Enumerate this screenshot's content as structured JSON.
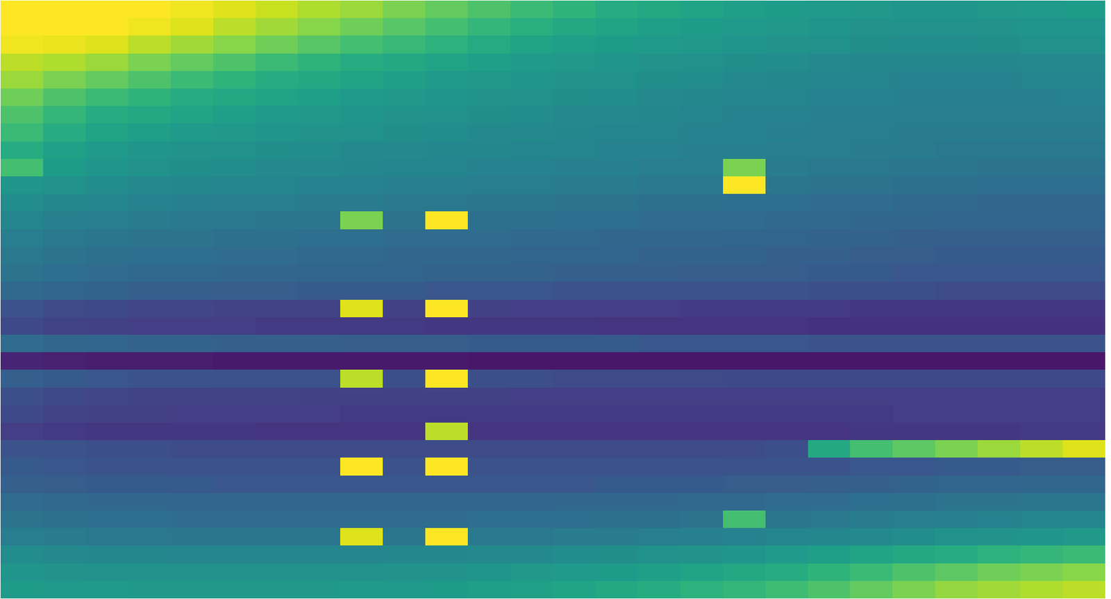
{
  "chart_data": {
    "type": "heatmap",
    "color": "Viridis",
    "tick_labels": false,
    "zlim": [
      0,
      1
    ],
    "cells": [
      [
        1.0,
        1.0,
        1.0,
        1.0,
        0.98,
        0.95,
        0.92,
        0.88,
        0.85,
        0.8,
        0.76,
        0.72,
        0.68,
        0.65,
        0.62,
        0.6,
        0.58,
        0.56,
        0.55,
        0.54,
        0.53,
        0.52,
        0.52,
        0.53,
        0.54,
        0.55
      ],
      [
        1.0,
        1.0,
        1.0,
        0.98,
        0.95,
        0.9,
        0.86,
        0.82,
        0.78,
        0.74,
        0.7,
        0.66,
        0.63,
        0.6,
        0.58,
        0.56,
        0.55,
        0.54,
        0.53,
        0.52,
        0.51,
        0.5,
        0.5,
        0.51,
        0.52,
        0.52
      ],
      [
        0.98,
        0.97,
        0.95,
        0.9,
        0.86,
        0.82,
        0.78,
        0.74,
        0.7,
        0.67,
        0.64,
        0.61,
        0.58,
        0.56,
        0.55,
        0.54,
        0.53,
        0.52,
        0.51,
        0.5,
        0.49,
        0.48,
        0.48,
        0.49,
        0.5,
        0.5
      ],
      [
        0.9,
        0.88,
        0.85,
        0.8,
        0.76,
        0.72,
        0.68,
        0.65,
        0.62,
        0.6,
        0.58,
        0.56,
        0.54,
        0.53,
        0.52,
        0.51,
        0.5,
        0.49,
        0.48,
        0.47,
        0.46,
        0.46,
        0.46,
        0.46,
        0.47,
        0.47
      ],
      [
        0.85,
        0.8,
        0.76,
        0.72,
        0.68,
        0.65,
        0.62,
        0.6,
        0.58,
        0.56,
        0.54,
        0.53,
        0.52,
        0.51,
        0.5,
        0.49,
        0.48,
        0.47,
        0.46,
        0.45,
        0.45,
        0.44,
        0.44,
        0.44,
        0.45,
        0.45
      ],
      [
        0.78,
        0.72,
        0.68,
        0.65,
        0.62,
        0.6,
        0.58,
        0.56,
        0.54,
        0.53,
        0.52,
        0.51,
        0.5,
        0.49,
        0.48,
        0.47,
        0.46,
        0.45,
        0.45,
        0.44,
        0.44,
        0.43,
        0.43,
        0.43,
        0.43,
        0.44
      ],
      [
        0.72,
        0.66,
        0.62,
        0.6,
        0.58,
        0.56,
        0.54,
        0.53,
        0.52,
        0.51,
        0.5,
        0.49,
        0.48,
        0.47,
        0.47,
        0.46,
        0.45,
        0.44,
        0.44,
        0.43,
        0.43,
        0.42,
        0.42,
        0.42,
        0.42,
        0.42
      ],
      [
        0.68,
        0.62,
        0.58,
        0.56,
        0.54,
        0.53,
        0.52,
        0.51,
        0.5,
        0.49,
        0.48,
        0.47,
        0.47,
        0.46,
        0.45,
        0.45,
        0.44,
        0.44,
        0.43,
        0.42,
        0.42,
        0.41,
        0.41,
        0.41,
        0.41,
        0.41
      ],
      [
        0.62,
        0.57,
        0.54,
        0.52,
        0.51,
        0.5,
        0.49,
        0.48,
        0.47,
        0.47,
        0.46,
        0.46,
        0.45,
        0.45,
        0.44,
        0.44,
        0.43,
        0.43,
        0.42,
        0.42,
        0.41,
        0.41,
        0.4,
        0.4,
        0.4,
        0.4
      ],
      [
        0.7,
        0.55,
        0.52,
        0.5,
        0.49,
        0.48,
        0.47,
        0.47,
        0.46,
        0.45,
        0.45,
        0.44,
        0.44,
        0.43,
        0.43,
        0.42,
        0.42,
        0.8,
        0.41,
        0.4,
        0.4,
        0.39,
        0.39,
        0.38,
        0.38,
        0.38
      ],
      [
        0.52,
        0.5,
        0.48,
        0.47,
        0.46,
        0.45,
        0.45,
        0.44,
        0.44,
        0.43,
        0.43,
        0.42,
        0.42,
        0.41,
        0.41,
        0.4,
        0.4,
        1.0,
        0.39,
        0.38,
        0.38,
        0.37,
        0.37,
        0.36,
        0.36,
        0.36
      ],
      [
        0.48,
        0.46,
        0.45,
        0.44,
        0.43,
        0.42,
        0.42,
        0.41,
        0.41,
        0.4,
        0.4,
        0.39,
        0.39,
        0.38,
        0.38,
        0.37,
        0.37,
        0.36,
        0.36,
        0.35,
        0.35,
        0.34,
        0.34,
        0.33,
        0.33,
        0.33
      ],
      [
        0.45,
        0.43,
        0.42,
        0.41,
        0.4,
        0.4,
        0.39,
        0.39,
        0.8,
        0.38,
        1.0,
        0.37,
        0.37,
        0.36,
        0.36,
        0.35,
        0.35,
        0.35,
        0.34,
        0.34,
        0.33,
        0.33,
        0.32,
        0.32,
        0.32,
        0.32
      ],
      [
        0.42,
        0.4,
        0.39,
        0.38,
        0.38,
        0.37,
        0.37,
        0.36,
        0.36,
        0.35,
        0.35,
        0.35,
        0.34,
        0.34,
        0.33,
        0.33,
        0.33,
        0.32,
        0.32,
        0.31,
        0.31,
        0.3,
        0.3,
        0.3,
        0.3,
        0.3
      ],
      [
        0.4,
        0.38,
        0.37,
        0.36,
        0.36,
        0.35,
        0.35,
        0.34,
        0.34,
        0.33,
        0.33,
        0.33,
        0.32,
        0.32,
        0.32,
        0.31,
        0.31,
        0.31,
        0.3,
        0.3,
        0.29,
        0.29,
        0.28,
        0.28,
        0.28,
        0.28
      ],
      [
        0.38,
        0.36,
        0.35,
        0.34,
        0.34,
        0.33,
        0.33,
        0.32,
        0.32,
        0.32,
        0.31,
        0.31,
        0.31,
        0.3,
        0.3,
        0.3,
        0.29,
        0.29,
        0.29,
        0.28,
        0.28,
        0.27,
        0.27,
        0.27,
        0.27,
        0.27
      ],
      [
        0.34,
        0.32,
        0.31,
        0.3,
        0.3,
        0.29,
        0.29,
        0.28,
        0.28,
        0.28,
        0.27,
        0.27,
        0.27,
        0.26,
        0.26,
        0.26,
        0.25,
        0.25,
        0.25,
        0.24,
        0.24,
        0.24,
        0.23,
        0.23,
        0.23,
        0.23
      ],
      [
        0.25,
        0.23,
        0.22,
        0.21,
        0.21,
        0.2,
        0.2,
        0.2,
        0.95,
        0.19,
        1.0,
        0.19,
        0.18,
        0.18,
        0.18,
        0.18,
        0.17,
        0.17,
        0.17,
        0.17,
        0.16,
        0.16,
        0.16,
        0.16,
        0.16,
        0.16
      ],
      [
        0.22,
        0.2,
        0.19,
        0.18,
        0.18,
        0.18,
        0.17,
        0.17,
        0.17,
        0.17,
        0.16,
        0.16,
        0.16,
        0.16,
        0.15,
        0.15,
        0.15,
        0.15,
        0.15,
        0.14,
        0.14,
        0.14,
        0.14,
        0.14,
        0.14,
        0.14
      ],
      [
        0.35,
        0.33,
        0.32,
        0.31,
        0.31,
        0.3,
        0.3,
        0.3,
        0.29,
        0.29,
        0.29,
        0.28,
        0.28,
        0.28,
        0.28,
        0.27,
        0.27,
        0.27,
        0.27,
        0.26,
        0.26,
        0.26,
        0.26,
        0.26,
        0.26,
        0.26
      ],
      [
        0.1,
        0.09,
        0.08,
        0.08,
        0.08,
        0.07,
        0.07,
        0.07,
        0.07,
        0.07,
        0.07,
        0.06,
        0.06,
        0.06,
        0.06,
        0.06,
        0.06,
        0.06,
        0.06,
        0.06,
        0.06,
        0.06,
        0.06,
        0.06,
        0.06,
        0.06
      ],
      [
        0.3,
        0.28,
        0.27,
        0.26,
        0.26,
        0.25,
        0.25,
        0.25,
        0.9,
        0.24,
        1.0,
        0.24,
        0.24,
        0.23,
        0.23,
        0.23,
        0.23,
        0.22,
        0.22,
        0.22,
        0.22,
        0.22,
        0.22,
        0.22,
        0.22,
        0.22
      ],
      [
        0.24,
        0.22,
        0.21,
        0.2,
        0.2,
        0.2,
        0.2,
        0.19,
        0.19,
        0.19,
        0.19,
        0.19,
        0.18,
        0.18,
        0.18,
        0.18,
        0.18,
        0.18,
        0.18,
        0.18,
        0.18,
        0.18,
        0.18,
        0.18,
        0.18,
        0.18
      ],
      [
        0.22,
        0.2,
        0.19,
        0.19,
        0.18,
        0.18,
        0.18,
        0.18,
        0.17,
        0.17,
        0.17,
        0.17,
        0.17,
        0.17,
        0.17,
        0.17,
        0.17,
        0.17,
        0.17,
        0.17,
        0.17,
        0.18,
        0.18,
        0.18,
        0.18,
        0.18
      ],
      [
        0.18,
        0.17,
        0.16,
        0.16,
        0.16,
        0.16,
        0.15,
        0.15,
        0.15,
        0.15,
        0.9,
        0.15,
        0.15,
        0.15,
        0.15,
        0.15,
        0.15,
        0.15,
        0.15,
        0.15,
        0.16,
        0.16,
        0.16,
        0.16,
        0.17,
        0.17
      ],
      [
        0.26,
        0.25,
        0.24,
        0.24,
        0.23,
        0.23,
        0.23,
        0.23,
        0.23,
        0.23,
        0.23,
        0.23,
        0.23,
        0.23,
        0.23,
        0.23,
        0.23,
        0.23,
        0.24,
        0.6,
        0.7,
        0.75,
        0.8,
        0.85,
        0.9,
        0.95
      ],
      [
        0.28,
        0.27,
        0.26,
        0.26,
        0.25,
        0.25,
        0.25,
        0.25,
        1.0,
        0.25,
        1.0,
        0.25,
        0.25,
        0.25,
        0.25,
        0.25,
        0.25,
        0.26,
        0.26,
        0.26,
        0.27,
        0.27,
        0.28,
        0.28,
        0.29,
        0.29
      ],
      [
        0.3,
        0.29,
        0.28,
        0.28,
        0.28,
        0.27,
        0.27,
        0.27,
        0.27,
        0.27,
        0.27,
        0.27,
        0.27,
        0.27,
        0.28,
        0.28,
        0.28,
        0.29,
        0.29,
        0.3,
        0.3,
        0.31,
        0.32,
        0.32,
        0.33,
        0.33
      ],
      [
        0.35,
        0.34,
        0.33,
        0.33,
        0.32,
        0.32,
        0.32,
        0.32,
        0.32,
        0.32,
        0.32,
        0.32,
        0.32,
        0.33,
        0.33,
        0.33,
        0.34,
        0.34,
        0.35,
        0.35,
        0.36,
        0.37,
        0.38,
        0.38,
        0.39,
        0.39
      ],
      [
        0.38,
        0.37,
        0.36,
        0.36,
        0.35,
        0.35,
        0.35,
        0.35,
        0.35,
        0.35,
        0.35,
        0.36,
        0.36,
        0.36,
        0.37,
        0.37,
        0.38,
        0.7,
        0.39,
        0.4,
        0.41,
        0.42,
        0.43,
        0.44,
        0.45,
        0.45
      ],
      [
        0.42,
        0.41,
        0.4,
        0.4,
        0.39,
        0.39,
        0.39,
        0.39,
        0.95,
        0.39,
        1.0,
        0.4,
        0.4,
        0.41,
        0.41,
        0.42,
        0.43,
        0.44,
        0.45,
        0.46,
        0.47,
        0.48,
        0.5,
        0.51,
        0.52,
        0.53
      ],
      [
        0.48,
        0.47,
        0.46,
        0.46,
        0.45,
        0.45,
        0.45,
        0.45,
        0.45,
        0.46,
        0.46,
        0.47,
        0.47,
        0.48,
        0.49,
        0.5,
        0.51,
        0.52,
        0.54,
        0.56,
        0.58,
        0.6,
        0.62,
        0.64,
        0.66,
        0.68
      ],
      [
        0.52,
        0.51,
        0.5,
        0.5,
        0.5,
        0.5,
        0.5,
        0.5,
        0.5,
        0.51,
        0.51,
        0.52,
        0.53,
        0.54,
        0.55,
        0.56,
        0.58,
        0.6,
        0.62,
        0.65,
        0.68,
        0.72,
        0.75,
        0.78,
        0.8,
        0.82
      ],
      [
        0.55,
        0.54,
        0.54,
        0.53,
        0.53,
        0.53,
        0.53,
        0.53,
        0.54,
        0.54,
        0.55,
        0.56,
        0.57,
        0.58,
        0.6,
        0.62,
        0.64,
        0.66,
        0.69,
        0.72,
        0.76,
        0.8,
        0.84,
        0.86,
        0.88,
        0.9
      ]
    ]
  }
}
